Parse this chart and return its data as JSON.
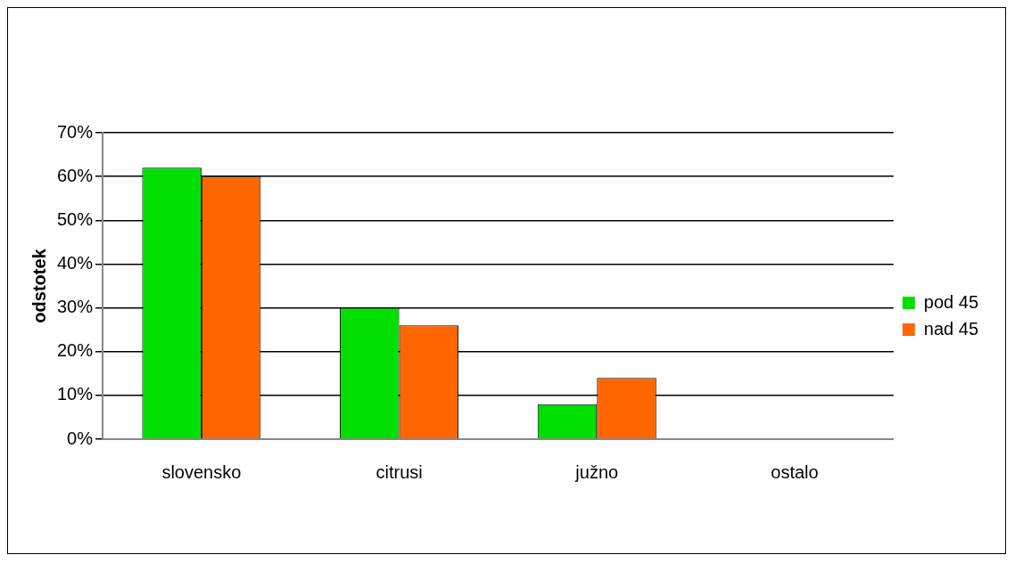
{
  "chart_data": {
    "type": "bar",
    "ylabel": "odstotek",
    "categories": [
      "slovensko",
      "citrusi",
      "južno",
      "ostalo"
    ],
    "series": [
      {
        "name": "pod 45",
        "color": "#00e000",
        "values": [
          0.62,
          0.3,
          0.08,
          0
        ]
      },
      {
        "name": "nad 45",
        "color": "#ff6600",
        "values": [
          0.6,
          0.26,
          0.14,
          0
        ]
      }
    ],
    "ylim": [
      0,
      0.7
    ],
    "yticks": [
      {
        "value": 0,
        "label": "0%"
      },
      {
        "value": 0.1,
        "label": "10%"
      },
      {
        "value": 0.2,
        "label": "20%"
      },
      {
        "value": 0.3,
        "label": "30%"
      },
      {
        "value": 0.4,
        "label": "40%"
      },
      {
        "value": 0.5,
        "label": "50%"
      },
      {
        "value": 0.6,
        "label": "60%"
      },
      {
        "value": 0.7,
        "label": "70%"
      }
    ],
    "grid": "y",
    "legend": "right"
  }
}
